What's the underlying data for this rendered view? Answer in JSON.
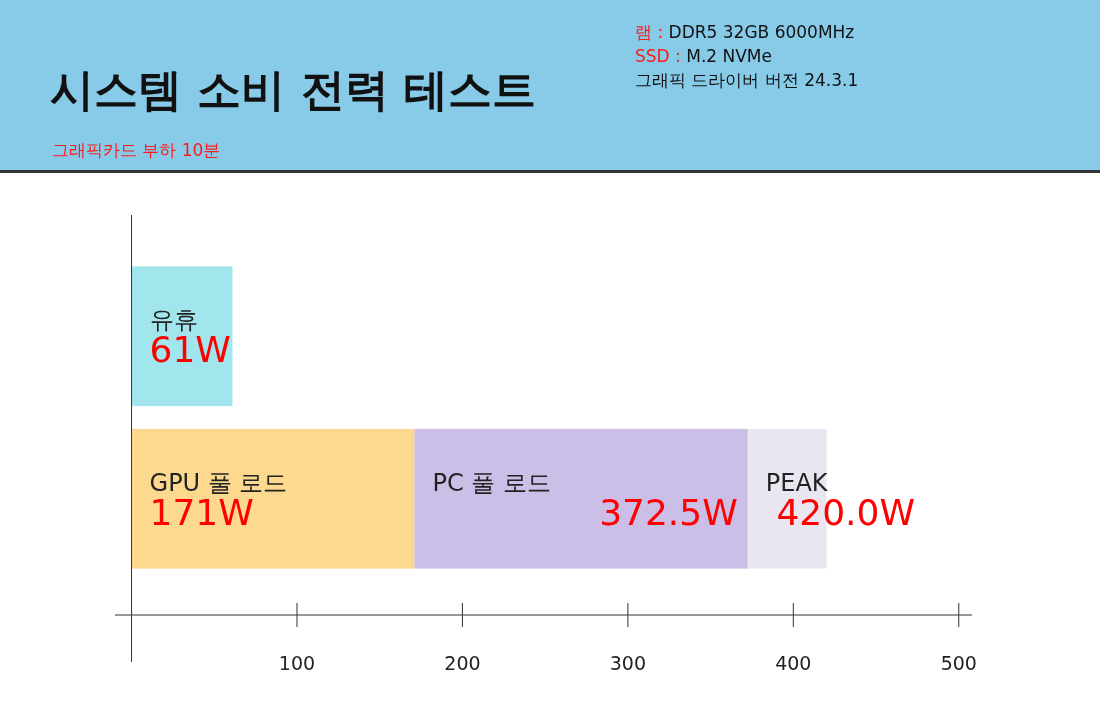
{
  "chart_data": {
    "type": "bar",
    "orientation": "horizontal",
    "stacked": true,
    "title": "시스템 소비 전력 테스트",
    "subtitle": "그래픽카드 부하 10분",
    "annotations": [
      "램 : DDR5 32GB 6000MHz",
      "SSD : M.2 NVMe",
      "그래픽 드라이버 버전 24.3.1",
      {
        "text": "372.5W",
        "x": 372.5
      },
      {
        "text": "420.0W",
        "x": 420.0
      }
    ],
    "categories": [
      null,
      null
    ],
    "series": [
      {
        "name": "유휴",
        "color": "#a0e6ec",
        "values": [
          61,
          null
        ],
        "value_labels": [
          "61W",
          null
        ]
      },
      {
        "name": "GPU 풀 로드",
        "color": "#fcd98e",
        "values": [
          null,
          171
        ],
        "value_labels": [
          null,
          "171W"
        ]
      },
      {
        "name": "PC 풀 로드",
        "color": "#cbbfe8",
        "values": [
          null,
          201.5
        ]
      },
      {
        "name": "PEAK",
        "color": "#e9e6f2",
        "values": [
          null,
          47.5
        ]
      }
    ],
    "xlim": [
      -10,
      508
    ],
    "xticks": [
      100,
      200,
      300,
      400,
      500
    ],
    "tick_labels": "x"
  }
}
